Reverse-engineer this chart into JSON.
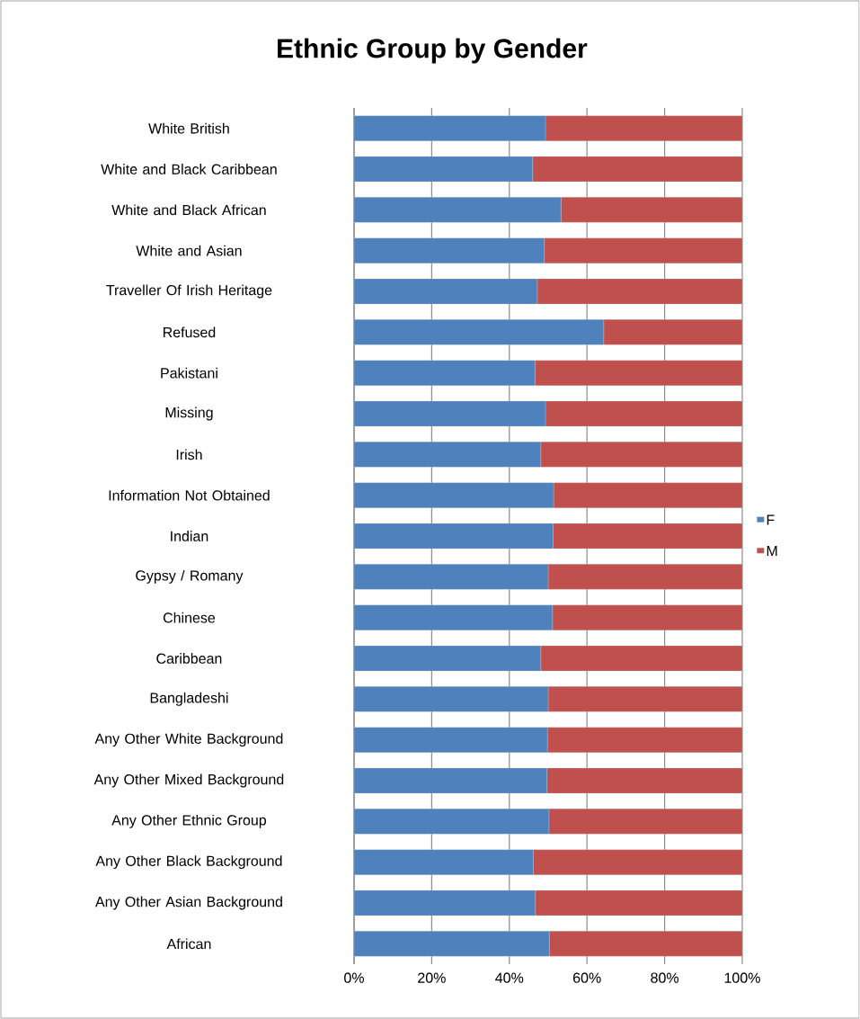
{
  "chart_data": {
    "type": "bar",
    "orientation": "horizontal",
    "stacked": true,
    "title": "Ethnic Group by Gender",
    "categories": [
      "White British",
      "White and Black Caribbean",
      "White and Black African",
      "White and Asian",
      "Traveller Of Irish Heritage",
      "Refused",
      "Pakistani",
      "Missing",
      "Irish",
      "Information Not Obtained",
      "Indian",
      "Gypsy / Romany",
      "Chinese",
      "Caribbean",
      "Bangladeshi",
      "Any Other White Background",
      "Any Other Mixed Background",
      "Any Other Ethnic Group",
      "Any Other Black Background",
      "Any Other Asian Background",
      "African"
    ],
    "series": [
      {
        "name": "F",
        "color": "#4f81bd",
        "values": [
          49.3,
          46.0,
          53.3,
          49.0,
          47.2,
          64.3,
          46.6,
          49.3,
          48.1,
          51.4,
          51.3,
          50.0,
          51.1,
          48.1,
          50.0,
          49.8,
          49.7,
          50.2,
          46.2,
          46.7,
          50.3
        ]
      },
      {
        "name": "M",
        "color": "#c0504d",
        "values": [
          50.7,
          54.0,
          46.7,
          51.0,
          52.8,
          35.7,
          53.4,
          50.7,
          51.9,
          48.6,
          48.7,
          50.0,
          48.9,
          51.9,
          50.0,
          50.2,
          50.3,
          49.8,
          53.8,
          53.3,
          49.7
        ]
      }
    ],
    "xlim": [
      0,
      100
    ],
    "xticks": [
      {
        "value": 0,
        "label": "0%"
      },
      {
        "value": 20,
        "label": "20%"
      },
      {
        "value": 40,
        "label": "40%"
      },
      {
        "value": 60,
        "label": "60%"
      },
      {
        "value": 80,
        "label": "80%"
      },
      {
        "value": 100,
        "label": "100%"
      }
    ],
    "grid": "x",
    "legend": "right"
  }
}
